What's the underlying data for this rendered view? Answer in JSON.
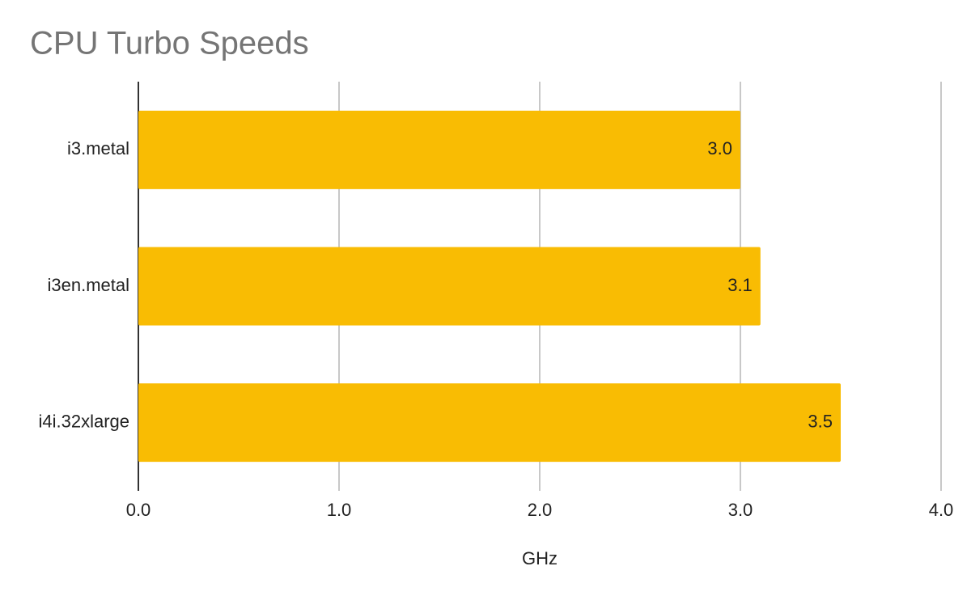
{
  "chart_data": {
    "type": "bar",
    "title": "CPU Turbo Speeds",
    "x_label": "GHz",
    "categories": [
      "i3.metal",
      "i3en.metal",
      "i4i.32xlarge"
    ],
    "values": [
      3,
      3.1,
      3.5
    ],
    "value_labels": [
      "3.0",
      "3.1",
      "3.5"
    ],
    "color": "#f9bc03",
    "xlim": [
      0,
      4
    ],
    "xticks": [
      {
        "value": 0,
        "label": "0.0"
      },
      {
        "value": 1,
        "label": "1.0"
      },
      {
        "value": 2,
        "label": "2.0"
      },
      {
        "value": 3,
        "label": "3.0"
      },
      {
        "value": 4,
        "label": "4.0"
      }
    ],
    "grid": true
  }
}
